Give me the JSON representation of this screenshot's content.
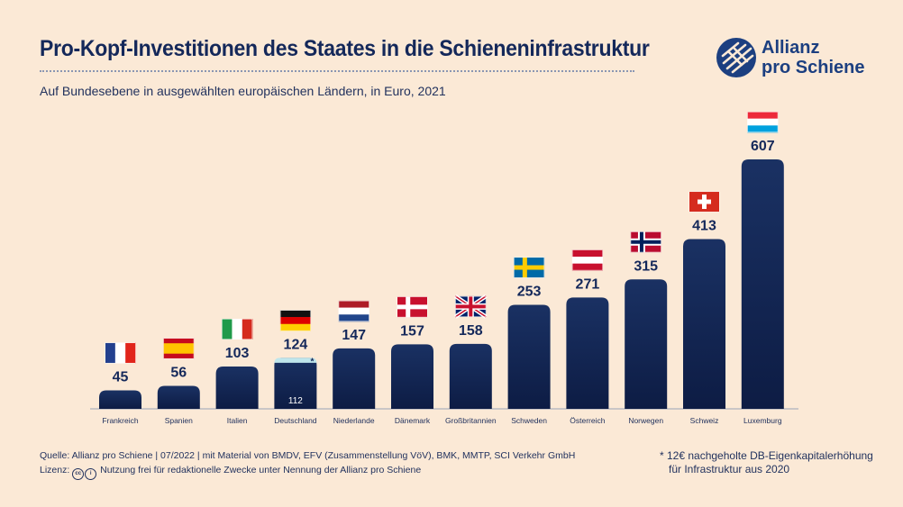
{
  "header": {
    "title": "Pro-Kopf-Investitionen des Staates in die Schieneninfrastruktur",
    "subtitle": "Auf Bundesebene in ausgewählten europäischen Ländern, in Euro, 2021"
  },
  "logo": {
    "line1": "Allianz",
    "line2": "pro Schiene",
    "icon": "allianz-pro-schiene-logo-icon"
  },
  "colors": {
    "background": "#fbe9d6",
    "bar_top": "#1a3163",
    "bar_bottom": "#0d1c44",
    "text": "#14285a",
    "highlight": "#bfe6ec"
  },
  "chart_data": {
    "type": "bar",
    "title": "Pro-Kopf-Investitionen des Staates in die Schieneninfrastruktur",
    "xlabel": "",
    "ylabel": "Euro",
    "ylim": [
      0,
      607
    ],
    "grid": false,
    "categories": [
      "Frankreich",
      "Spanien",
      "Italien",
      "Deutschland",
      "Niederlande",
      "Dänemark",
      "Großbritannien",
      "Schweden",
      "Österreich",
      "Norwegen",
      "Schweiz",
      "Luxemburg"
    ],
    "values": [
      45,
      56,
      103,
      124,
      147,
      157,
      158,
      253,
      271,
      315,
      413,
      607
    ],
    "value_labels": [
      "45",
      "56",
      "103",
      "124",
      "147",
      "157",
      "158",
      "253",
      "271",
      "315",
      "413",
      "607"
    ],
    "flags": [
      "france-flag-icon",
      "spain-flag-icon",
      "italy-flag-icon",
      "germany-flag-icon",
      "netherlands-flag-icon",
      "denmark-flag-icon",
      "uk-flag-icon",
      "sweden-flag-icon",
      "austria-flag-icon",
      "norway-flag-icon",
      "switzerland-flag-icon",
      "luxembourg-flag-icon"
    ],
    "annotations": [
      {
        "category": "Deutschland",
        "base_value": 112,
        "base_label": "112",
        "extra_value": 12,
        "marker": "*"
      }
    ]
  },
  "footer": {
    "source": "Quelle: Allianz pro Schiene | 07/2022 | mit Material von BMDV, EFV (Zusammenstellung VöV), BMK, MMTP, SCI Verkehr GmbH",
    "license_prefix": "Lizenz:",
    "license_text": "Nutzung frei für redaktionelle Zwecke unter Nennung der Allianz pro Schiene",
    "footnote_line1": "* 12€ nachgeholte DB-Eigenkapitalerhöhung",
    "footnote_line2": "für Infrastruktur aus 2020"
  }
}
